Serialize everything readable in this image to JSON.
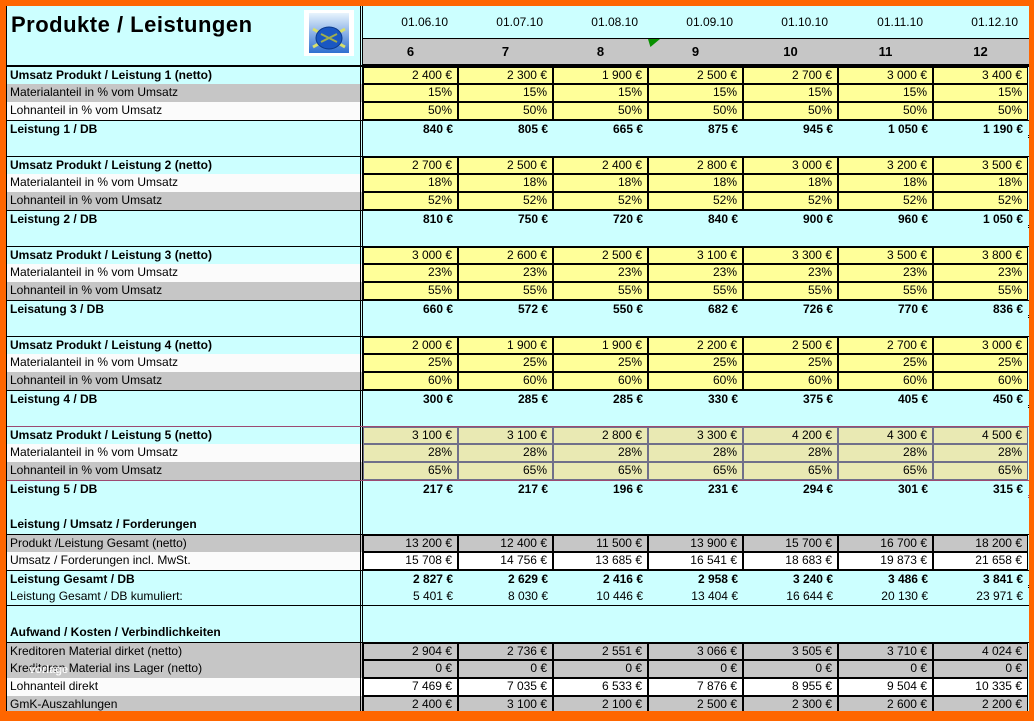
{
  "title": "Produkte / Leistungen",
  "watermark": "vorlage",
  "colors": {
    "frame": "#ff6600",
    "sheet_bg": "#ccffff",
    "input_cell": "#ffff99",
    "input_cell_block5": "#e9e9b3",
    "stripe_gray": "#c6c6c6",
    "flag_green": "#089000"
  },
  "columns": {
    "dates": [
      "01.06.10",
      "01.07.10",
      "01.08.10",
      "01.09.10",
      "01.10.10",
      "01.11.10",
      "01.12.10"
    ],
    "numbers": [
      "6",
      "7",
      "8",
      "9",
      "10",
      "11",
      "12"
    ]
  },
  "rows": [
    {
      "type": "data",
      "classes": "top",
      "label": "Umsatz Produkt / Leistung 1 (netto)",
      "labelBold": true,
      "labelBg": "cyan",
      "cellType": "yellow",
      "values": [
        "2 400 €",
        "2 300 €",
        "1 900 €",
        "2 500 €",
        "2 700 €",
        "3 000 €",
        "3 400 €"
      ]
    },
    {
      "type": "data",
      "label": "Materialanteil in % vom Umsatz",
      "labelBg": "gray",
      "cellType": "yellow",
      "values": [
        "15%",
        "15%",
        "15%",
        "15%",
        "15%",
        "15%",
        "15%"
      ]
    },
    {
      "type": "data",
      "label": "Lohnanteil in % vom Umsatz",
      "labelBg": "white",
      "cellType": "yellow",
      "values": [
        "50%",
        "50%",
        "50%",
        "50%",
        "50%",
        "50%",
        "50%"
      ]
    },
    {
      "type": "data",
      "classes": "db",
      "label": "Leistung 1 / DB",
      "labelBold": true,
      "labelBg": "cyan",
      "cellType": "cyan",
      "values": [
        "840 €",
        "805 €",
        "665 €",
        "875 €",
        "945 €",
        "1 050 €",
        "1 190 €"
      ]
    },
    {
      "type": "spacer"
    },
    {
      "type": "data",
      "classes": "top",
      "label": "Umsatz Produkt / Leistung 2 (netto)",
      "labelBold": true,
      "labelBg": "cyan",
      "cellType": "yellow",
      "values": [
        "2 700 €",
        "2 500 €",
        "2 400 €",
        "2 800 €",
        "3 000 €",
        "3 200 €",
        "3 500 €"
      ]
    },
    {
      "type": "data",
      "label": "Materialanteil in % vom Umsatz",
      "labelBg": "white",
      "cellType": "yellow",
      "values": [
        "18%",
        "18%",
        "18%",
        "18%",
        "18%",
        "18%",
        "18%"
      ]
    },
    {
      "type": "data",
      "label": "Lohnanteil in % vom Umsatz",
      "labelBg": "gray",
      "cellType": "yellow",
      "values": [
        "52%",
        "52%",
        "52%",
        "52%",
        "52%",
        "52%",
        "52%"
      ]
    },
    {
      "type": "data",
      "classes": "db",
      "label": "Leistung 2 / DB",
      "labelBold": true,
      "labelBg": "cyan",
      "cellType": "cyan",
      "values": [
        "810 €",
        "750 €",
        "720 €",
        "840 €",
        "900 €",
        "960 €",
        "1 050 €"
      ]
    },
    {
      "type": "spacer"
    },
    {
      "type": "data",
      "classes": "top",
      "label": "Umsatz Produkt / Leistung 3 (netto)",
      "labelBold": true,
      "labelBg": "cyan",
      "cellType": "yellow",
      "values": [
        "3 000 €",
        "2 600 €",
        "2 500 €",
        "3 100 €",
        "3 300 €",
        "3 500 €",
        "3 800 €"
      ]
    },
    {
      "type": "data",
      "label": "Materialanteil in % vom Umsatz",
      "labelBg": "white",
      "cellType": "yellow",
      "values": [
        "23%",
        "23%",
        "23%",
        "23%",
        "23%",
        "23%",
        "23%"
      ]
    },
    {
      "type": "data",
      "label": "Lohnanteil in % vom Umsatz",
      "labelBg": "gray",
      "cellType": "yellow",
      "values": [
        "55%",
        "55%",
        "55%",
        "55%",
        "55%",
        "55%",
        "55%"
      ]
    },
    {
      "type": "data",
      "classes": "db",
      "label": "Leisatung 3 / DB",
      "labelBold": true,
      "labelBg": "cyan",
      "cellType": "cyan",
      "values": [
        "660 €",
        "572 €",
        "550 €",
        "682 €",
        "726 €",
        "770 €",
        "836 €"
      ]
    },
    {
      "type": "spacer"
    },
    {
      "type": "data",
      "classes": "top",
      "label": "Umsatz Produkt / Leistung 4 (netto)",
      "labelBold": true,
      "labelBg": "cyan",
      "cellType": "yellow",
      "values": [
        "2 000 €",
        "1 900 €",
        "1 900 €",
        "2 200 €",
        "2 500 €",
        "2 700 €",
        "3 000 €"
      ]
    },
    {
      "type": "data",
      "label": "Materialanteil in % vom Umsatz",
      "labelBg": "white",
      "cellType": "yellow",
      "values": [
        "25%",
        "25%",
        "25%",
        "25%",
        "25%",
        "25%",
        "25%"
      ]
    },
    {
      "type": "data",
      "label": "Lohnanteil in % vom Umsatz",
      "labelBg": "gray",
      "cellType": "yellow",
      "values": [
        "60%",
        "60%",
        "60%",
        "60%",
        "60%",
        "60%",
        "60%"
      ]
    },
    {
      "type": "data",
      "classes": "db",
      "label": "Leistung 4 / DB",
      "labelBold": true,
      "labelBg": "cyan",
      "cellType": "cyan",
      "values": [
        "300 €",
        "285 €",
        "285 €",
        "330 €",
        "375 €",
        "405 €",
        "450 €"
      ]
    },
    {
      "type": "spacer"
    },
    {
      "type": "data",
      "classes": "topv",
      "label": "Umsatz Produkt / Leistung 5 (netto)",
      "labelBold": true,
      "labelBg": "cyan",
      "cellType": "olive",
      "values": [
        "3 100 €",
        "3 100 €",
        "2 800 €",
        "3 300 €",
        "4 200 €",
        "4 300 €",
        "4 500 €"
      ]
    },
    {
      "type": "data",
      "label": "Materialanteil in % vom Umsatz",
      "labelBg": "white",
      "cellType": "olive",
      "values": [
        "28%",
        "28%",
        "28%",
        "28%",
        "28%",
        "28%",
        "28%"
      ]
    },
    {
      "type": "data",
      "label": "Lohnanteil in % vom Umsatz",
      "labelBg": "gray",
      "cellType": "olive",
      "values": [
        "65%",
        "65%",
        "65%",
        "65%",
        "65%",
        "65%",
        "65%"
      ]
    },
    {
      "type": "data",
      "classes": "dbv",
      "label": "Leistung 5 / DB",
      "labelBold": true,
      "labelBg": "cyan",
      "cellType": "cyan",
      "values": [
        "217 €",
        "217 €",
        "196 €",
        "231 €",
        "294 €",
        "301 €",
        "315 €"
      ]
    },
    {
      "type": "spacer"
    },
    {
      "type": "section",
      "label": "Leistung / Umsatz / Forderungen",
      "labelBold": true,
      "labelBg": "cyan"
    },
    {
      "type": "data",
      "classes": "top",
      "label": "Produkt /Leistung Gesamt (netto)",
      "labelBg": "gray",
      "cellType": "gray",
      "values": [
        "13 200 €",
        "12 400 €",
        "11 500 €",
        "13 900 €",
        "15 700 €",
        "16 700 €",
        "18 200 €"
      ]
    },
    {
      "type": "data",
      "label": "Umsatz / Forderungen incl. MwSt.",
      "labelBg": "white",
      "cellType": "white",
      "values": [
        "15 708 €",
        "14 756 €",
        "13 685 €",
        "16 541 €",
        "18 683 €",
        "19 873 €",
        "21 658 €"
      ]
    },
    {
      "type": "data",
      "classes": "db",
      "label": "Leistung Gesamt / DB",
      "labelBold": true,
      "labelBg": "cyan",
      "cellType": "cyan",
      "values": [
        "2 827 €",
        "2 629 €",
        "2 416 €",
        "2 958 €",
        "3 240 €",
        "3 486 €",
        "3 841 €"
      ]
    },
    {
      "type": "data",
      "classes": "kum",
      "label": "Leistung Gesamt / DB kumuliert:",
      "labelBg": "cyan",
      "cellType": "cyan",
      "values": [
        "5 401 €",
        "8 030 €",
        "10 446 €",
        "13 404 €",
        "16 644 €",
        "20 130 €",
        "23 971 €"
      ]
    },
    {
      "type": "spacer"
    },
    {
      "type": "section",
      "label": "Aufwand / Kosten / Verbindlichkeiten",
      "labelBold": true,
      "labelBg": "cyan"
    },
    {
      "type": "data",
      "classes": "top",
      "label": "Kreditoren Material dirket (netto)",
      "labelBg": "gray",
      "cellType": "gray",
      "values": [
        "2 904 €",
        "2 736 €",
        "2 551 €",
        "3 066 €",
        "3 505 €",
        "3 710 €",
        "4 024 €"
      ]
    },
    {
      "type": "data",
      "label": "Kreditoren Material ins Lager (netto)",
      "labelBg": "gray",
      "cellType": "gray",
      "watermark": true,
      "values": [
        "0 €",
        "0 €",
        "0 €",
        "0 €",
        "0 €",
        "0 €",
        "0 €"
      ]
    },
    {
      "type": "data",
      "label": "Lohnanteil direkt",
      "labelBg": "white",
      "cellType": "white",
      "values": [
        "7 469 €",
        "7 035 €",
        "6 533 €",
        "7 876 €",
        "8 955 €",
        "9 504 €",
        "10 335 €"
      ]
    },
    {
      "type": "data",
      "label": "GmK-Auszahlungen",
      "labelBg": "gray",
      "cellType": "gray",
      "values": [
        "2 400 €",
        "3 100 €",
        "2 100 €",
        "2 500 €",
        "2 300 €",
        "2 600 €",
        "2 200 €"
      ]
    }
  ]
}
